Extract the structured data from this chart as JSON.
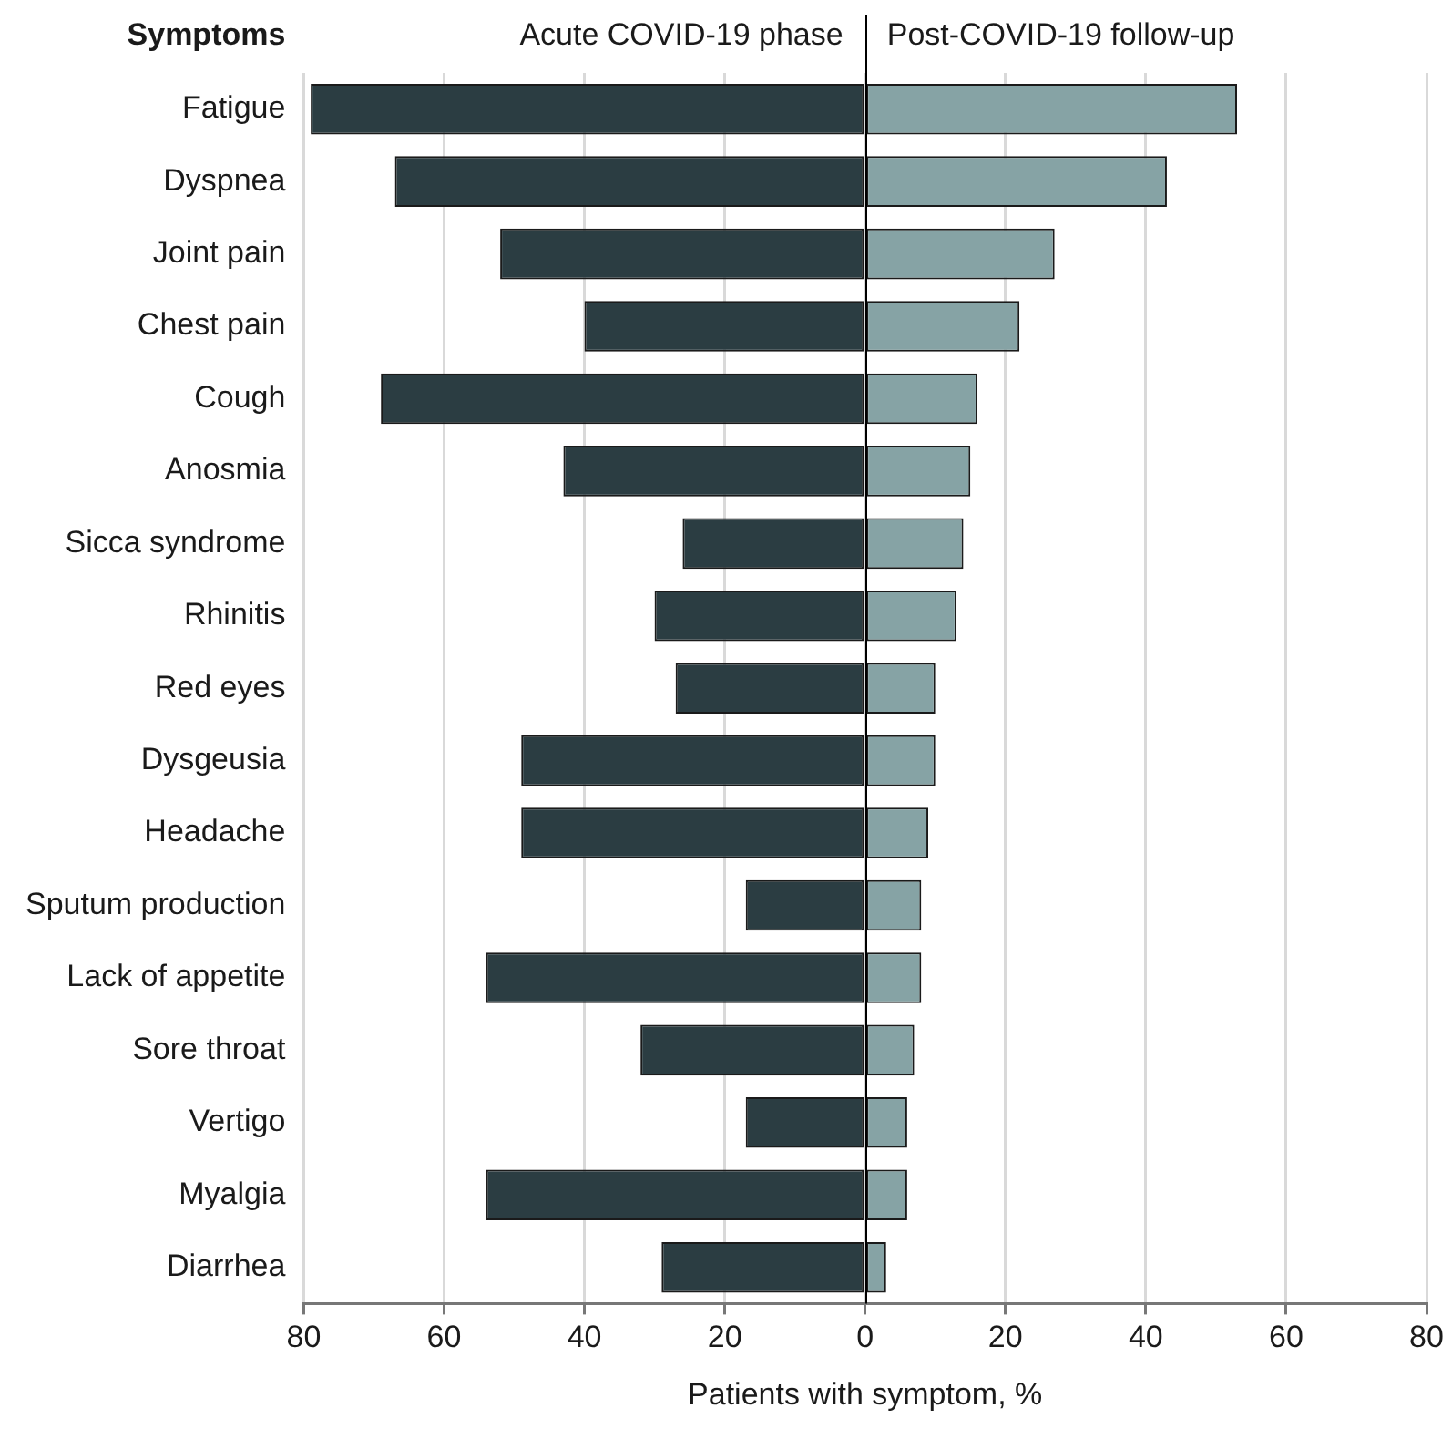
{
  "chart_data": {
    "type": "bar",
    "orientation": "horizontal",
    "stacked": true,
    "ylabel": "Symptoms",
    "xlabel": "Patients with symptom, %",
    "categories": [
      "Fatigue",
      "Dyspnea",
      "Joint pain",
      "Chest pain",
      "Cough",
      "Anosmia",
      "Sicca syndrome",
      "Rhinitis",
      "Red eyes",
      "Dysgeusia",
      "Headache",
      "Sputum production",
      "Lack of appetite",
      "Sore throat",
      "Vertigo",
      "Myalgia",
      "Diarrhea"
    ],
    "series": [
      {
        "name": "Acute COVID-19 phase",
        "color": "#2b3d42",
        "values": [
          -79,
          -67,
          -52,
          -40,
          -69,
          -43,
          -26,
          -30,
          -27,
          -49,
          -49,
          -17,
          -54,
          -32,
          -17,
          -54,
          -29
        ]
      },
      {
        "name": "Post-COVID-19 follow-up",
        "color": "#86a3a5",
        "values": [
          53,
          43,
          27,
          22,
          16,
          15,
          14,
          13,
          10,
          10,
          9,
          8,
          8,
          7,
          6,
          6,
          3
        ]
      }
    ],
    "xlim": [
      -80,
      80
    ],
    "xticks": [
      {
        "value": -80,
        "label": "80"
      },
      {
        "value": -60,
        "label": "60"
      },
      {
        "value": -40,
        "label": "40"
      },
      {
        "value": -20,
        "label": "20"
      },
      0,
      20,
      40,
      60,
      80
    ],
    "grid": "x",
    "legend": false
  }
}
